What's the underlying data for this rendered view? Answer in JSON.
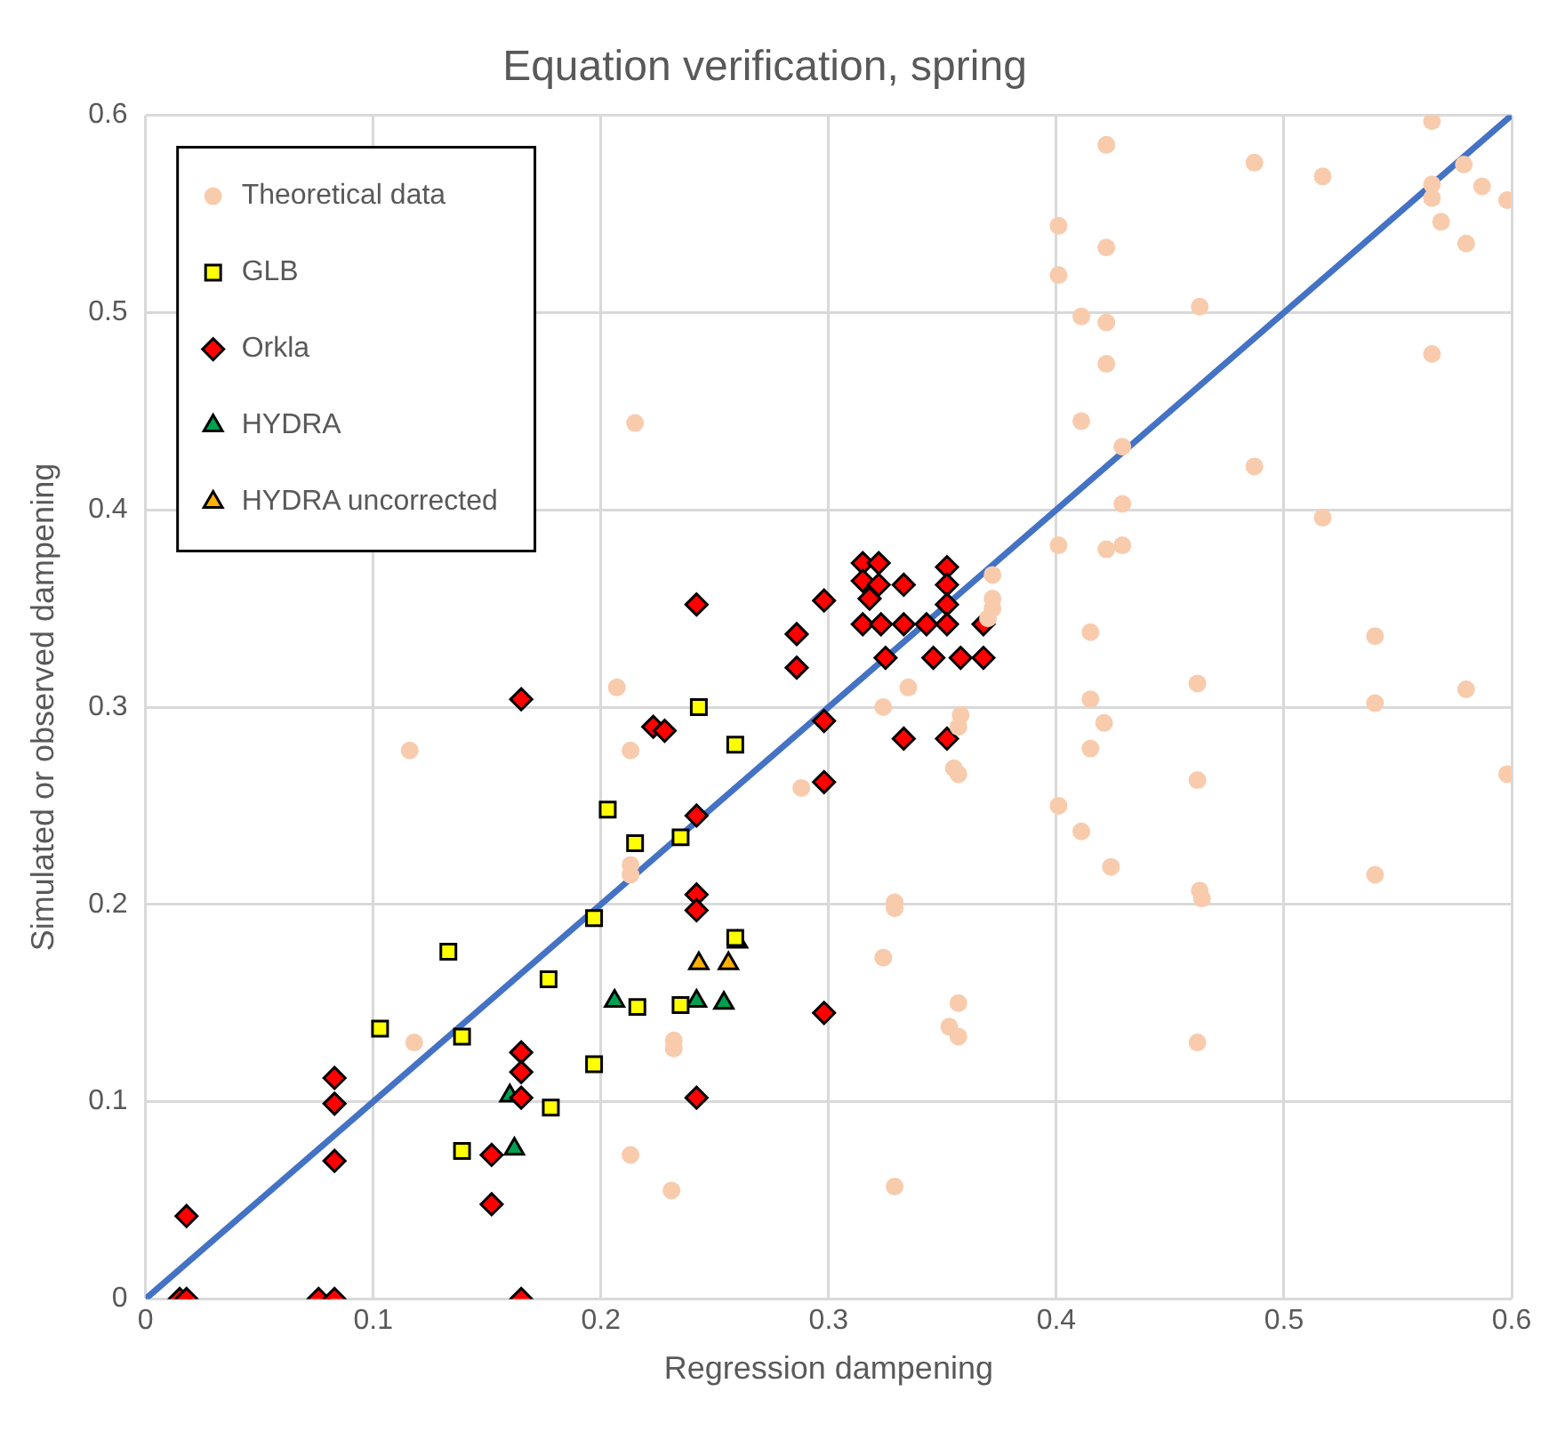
{
  "chart_data": {
    "type": "scatter",
    "title": "Equation verification, spring",
    "xlabel": "Regression dampening",
    "ylabel": "Simulated or observed dampening",
    "xlim": [
      0,
      0.6
    ],
    "ylim": [
      0,
      0.6
    ],
    "xticks": [
      0,
      0.1,
      0.2,
      0.3,
      0.4,
      0.5,
      0.6
    ],
    "yticks": [
      0,
      0.1,
      0.2,
      0.3,
      0.4,
      0.5,
      0.6
    ],
    "grid": true,
    "legend": "top left",
    "series": [
      {
        "name": "Theoretical data",
        "color": "#f8cbad",
        "marker": "circle",
        "x": [
          0.116,
          0.118,
          0.215,
          0.207,
          0.213,
          0.213,
          0.213,
          0.213,
          0.232,
          0.232,
          0.231,
          0.288,
          0.324,
          0.324,
          0.329,
          0.329,
          0.329,
          0.335,
          0.353,
          0.357,
          0.357,
          0.355,
          0.357,
          0.357,
          0.358,
          0.372,
          0.372,
          0.372,
          0.37,
          0.401,
          0.401,
          0.401,
          0.401,
          0.411,
          0.411,
          0.411,
          0.415,
          0.415,
          0.415,
          0.422,
          0.422,
          0.422,
          0.422,
          0.422,
          0.421,
          0.424,
          0.429,
          0.429,
          0.429,
          0.463,
          0.462,
          0.462,
          0.463,
          0.464,
          0.462,
          0.487,
          0.487,
          0.517,
          0.517,
          0.54,
          0.54,
          0.54,
          0.565,
          0.565,
          0.565,
          0.565,
          0.569,
          0.579,
          0.58,
          0.58,
          0.587,
          0.598,
          0.598
        ],
        "values": [
          0.278,
          0.13,
          0.444,
          0.31,
          0.278,
          0.22,
          0.215,
          0.073,
          0.131,
          0.127,
          0.055,
          0.259,
          0.3,
          0.173,
          0.201,
          0.198,
          0.057,
          0.31,
          0.138,
          0.133,
          0.15,
          0.269,
          0.266,
          0.29,
          0.296,
          0.367,
          0.355,
          0.35,
          0.345,
          0.544,
          0.519,
          0.382,
          0.25,
          0.498,
          0.445,
          0.237,
          0.338,
          0.304,
          0.279,
          0.585,
          0.533,
          0.495,
          0.474,
          0.38,
          0.292,
          0.219,
          0.432,
          0.403,
          0.382,
          0.503,
          0.312,
          0.263,
          0.207,
          0.203,
          0.13,
          0.576,
          0.422,
          0.569,
          0.396,
          0.336,
          0.302,
          0.215,
          0.597,
          0.565,
          0.558,
          0.479,
          0.546,
          0.575,
          0.535,
          0.309,
          0.564,
          0.557,
          0.266
        ]
      },
      {
        "name": "GLB",
        "color": "#ffff00",
        "marker": "square",
        "x": [
          0.103,
          0.133,
          0.139,
          0.139,
          0.177,
          0.178,
          0.197,
          0.197,
          0.203,
          0.215,
          0.216,
          0.235,
          0.235,
          0.243,
          0.259,
          0.259
        ],
        "values": [
          0.137,
          0.176,
          0.133,
          0.075,
          0.162,
          0.097,
          0.193,
          0.119,
          0.248,
          0.231,
          0.148,
          0.234,
          0.149,
          0.3,
          0.281,
          0.183
        ]
      },
      {
        "name": "Orkla",
        "color": "#ff0000",
        "marker": "diamond",
        "x": [
          0.018,
          0.015,
          0.018,
          0.076,
          0.083,
          0.083,
          0.083,
          0.083,
          0.152,
          0.152,
          0.165,
          0.165,
          0.165,
          0.165,
          0.165,
          0.223,
          0.228,
          0.242,
          0.242,
          0.242,
          0.242,
          0.242,
          0.286,
          0.286,
          0.298,
          0.298,
          0.298,
          0.298,
          0.315,
          0.315,
          0.315,
          0.318,
          0.322,
          0.322,
          0.323,
          0.325,
          0.333,
          0.333,
          0.333,
          0.343,
          0.346,
          0.352,
          0.352,
          0.352,
          0.352,
          0.352,
          0.358,
          0.368,
          0.368
        ],
        "values": [
          0.042,
          0,
          0,
          0,
          0,
          0.112,
          0.099,
          0.07,
          0.073,
          0.048,
          0.304,
          0.125,
          0.115,
          0.102,
          0,
          0.29,
          0.288,
          0.352,
          0.245,
          0.205,
          0.197,
          0.102,
          0.337,
          0.32,
          0.354,
          0.293,
          0.262,
          0.145,
          0.373,
          0.364,
          0.342,
          0.355,
          0.373,
          0.362,
          0.342,
          0.325,
          0.362,
          0.342,
          0.284,
          0.342,
          0.325,
          0.371,
          0.362,
          0.352,
          0.342,
          0.284,
          0.325,
          0.342,
          0.325
        ]
      },
      {
        "name": "HYDRA",
        "color": "#00a050",
        "marker": "triangle",
        "x": [
          0.16,
          0.162,
          0.206,
          0.242,
          0.254,
          0.26
        ],
        "values": [
          0.103,
          0.076,
          0.151,
          0.151,
          0.15,
          0.181
        ]
      },
      {
        "name": "HYDRA uncorrected",
        "color": "#ffb000",
        "marker": "triangle",
        "x": [
          0.243,
          0.256
        ],
        "values": [
          0.17,
          0.17
        ]
      },
      {
        "type": "line",
        "color": "#4472c4",
        "marker": "none",
        "x": [
          0,
          0.6
        ],
        "values": [
          0,
          0.6
        ]
      }
    ]
  }
}
